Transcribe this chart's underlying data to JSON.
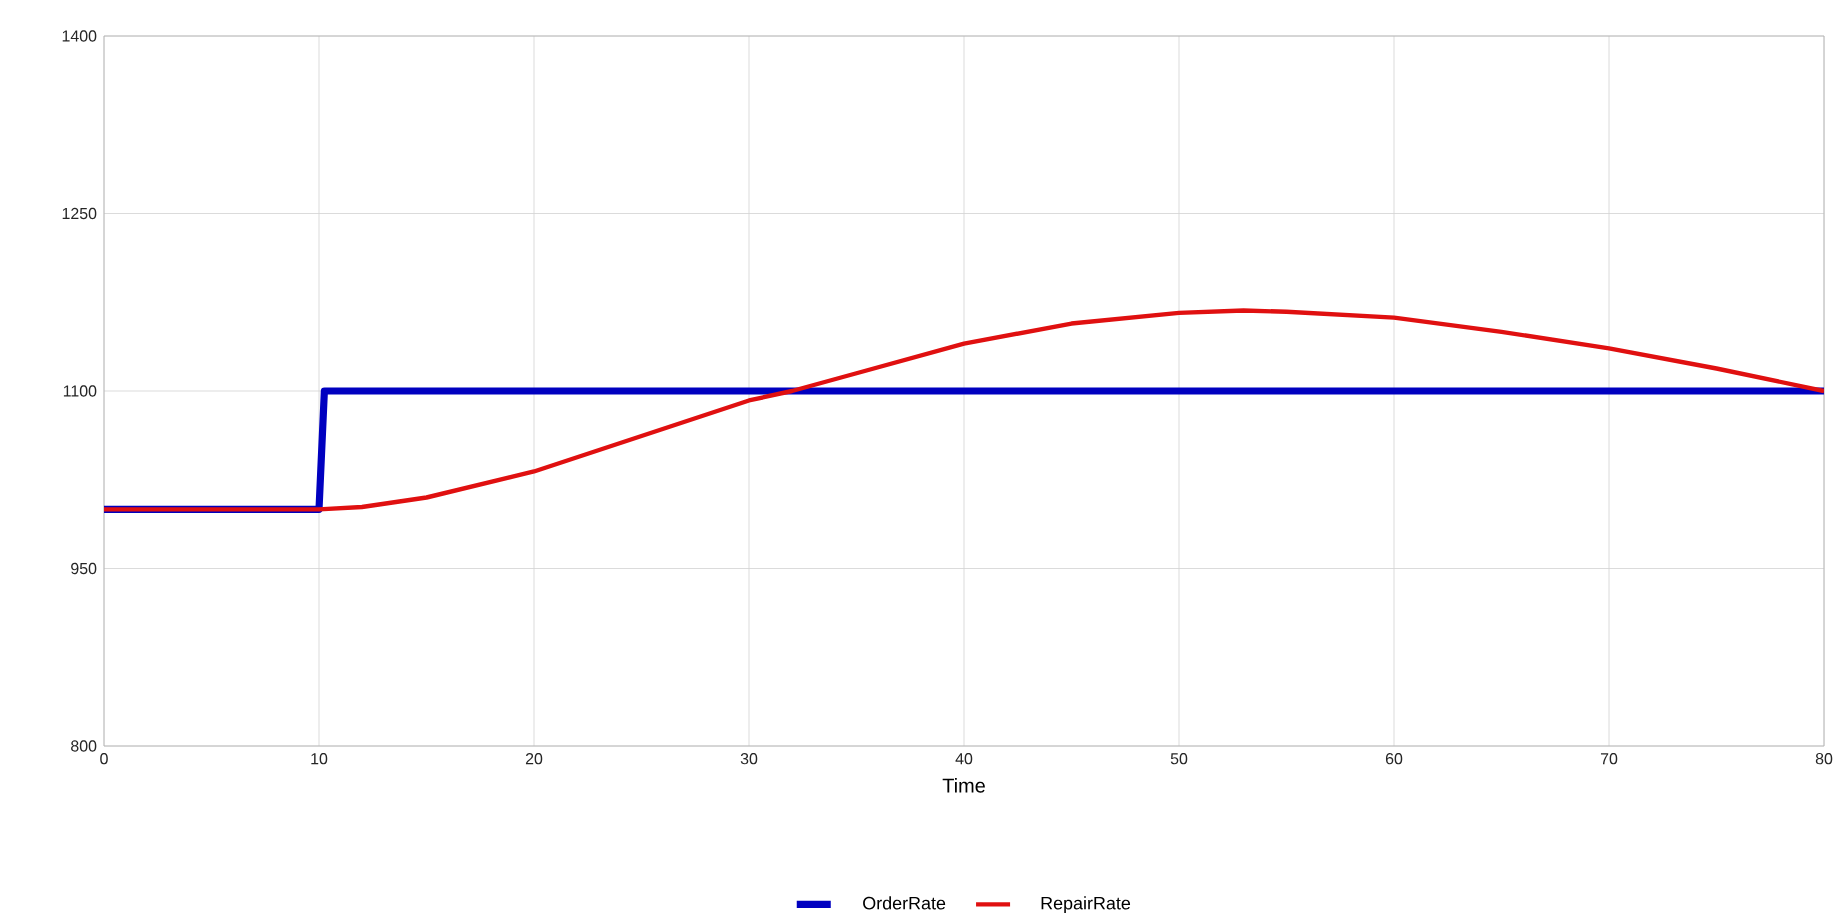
{
  "chart_data": {
    "type": "line",
    "xlabel": "Time",
    "xlim": [
      0,
      80
    ],
    "xticks": [
      0,
      10,
      20,
      30,
      40,
      50,
      60,
      70,
      80
    ],
    "ylim": [
      800,
      1400
    ],
    "yticks": [
      800,
      950,
      1100,
      1250,
      1400
    ],
    "grid": true,
    "legend": "bottom",
    "marker": "none",
    "line_style": "solid",
    "series": [
      {
        "name": "OrderRate",
        "color": "#0000c0",
        "x": [
          0,
          10,
          10.25,
          80
        ],
        "values": [
          1000,
          1000,
          1100,
          1100
        ]
      },
      {
        "name": "RepairRate",
        "color": "#e01010",
        "x": [
          0,
          10,
          12,
          15,
          20,
          25,
          30,
          32,
          35,
          40,
          45,
          50,
          53,
          55,
          60,
          65,
          70,
          75,
          80
        ],
        "values": [
          1000,
          1000,
          1002,
          1010,
          1032,
          1062,
          1092,
          1100,
          1115,
          1140,
          1157,
          1166,
          1168,
          1167,
          1162,
          1150,
          1136,
          1119,
          1100
        ]
      }
    ]
  }
}
